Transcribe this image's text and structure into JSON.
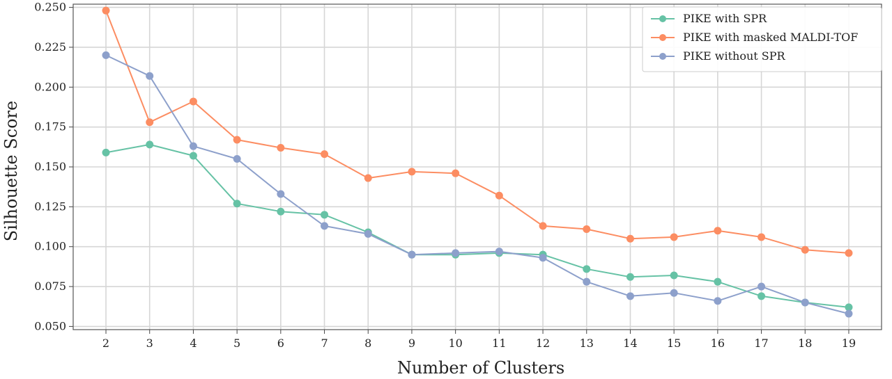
{
  "chart_data": {
    "type": "line",
    "title": "",
    "xlabel": "Number of Clusters",
    "ylabel": "Silhouette Score",
    "x": [
      2,
      3,
      4,
      5,
      6,
      7,
      8,
      9,
      10,
      11,
      12,
      13,
      14,
      15,
      16,
      17,
      18,
      19
    ],
    "xlim": [
      1.25,
      19.75
    ],
    "ylim": [
      0.048,
      0.252
    ],
    "yticks": [
      0.05,
      0.075,
      0.1,
      0.125,
      0.15,
      0.175,
      0.2,
      0.225,
      0.25
    ],
    "ytick_labels": [
      "0.050",
      "0.075",
      "0.100",
      "0.125",
      "0.150",
      "0.175",
      "0.200",
      "0.225",
      "0.250"
    ],
    "grid": true,
    "legend_position": "top-right",
    "series": [
      {
        "name": "PIKE with SPR",
        "color": "#66c2a5",
        "values": [
          0.159,
          0.164,
          0.157,
          0.127,
          0.122,
          0.12,
          0.109,
          0.095,
          0.095,
          0.096,
          0.095,
          0.086,
          0.081,
          0.082,
          0.078,
          0.069,
          0.065,
          0.062
        ]
      },
      {
        "name": "PIKE with masked MALDI-TOF",
        "color": "#fc8d62",
        "values": [
          0.248,
          0.178,
          0.191,
          0.167,
          0.162,
          0.158,
          0.143,
          0.147,
          0.146,
          0.132,
          0.113,
          0.111,
          0.105,
          0.106,
          0.11,
          0.106,
          0.098,
          0.096
        ]
      },
      {
        "name": "PIKE without SPR",
        "color": "#8da0cb",
        "values": [
          0.22,
          0.207,
          0.163,
          0.155,
          0.133,
          0.113,
          0.108,
          0.095,
          0.096,
          0.097,
          0.093,
          0.078,
          0.069,
          0.071,
          0.066,
          0.075,
          0.065,
          0.058
        ]
      }
    ]
  }
}
